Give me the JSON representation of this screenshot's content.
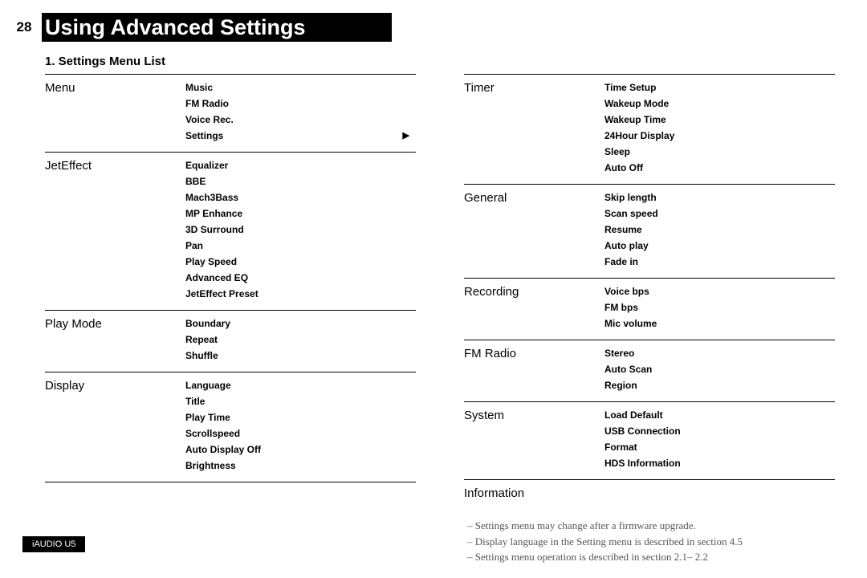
{
  "page_number": "28",
  "title": "Using Advanced Settings",
  "section_heading": "1. Settings Menu List",
  "left_column": [
    {
      "title": "Menu",
      "items": [
        "Music",
        "FM Radio",
        "Voice Rec.",
        "Settings"
      ],
      "arrow_on_last": true
    },
    {
      "title": "JetEffect",
      "items": [
        "Equalizer",
        "BBE",
        "Mach3Bass",
        "MP Enhance",
        "3D Surround",
        "Pan",
        "Play Speed",
        "Advanced EQ",
        "JetEffect Preset"
      ]
    },
    {
      "title": "Play Mode",
      "items": [
        "Boundary",
        "Repeat",
        "Shuffle"
      ]
    },
    {
      "title": "Display",
      "items": [
        "Language",
        "Title",
        "Play Time",
        "Scrollspeed",
        "Auto Display Off",
        "Brightness"
      ]
    }
  ],
  "right_column": [
    {
      "title": "Timer",
      "items": [
        "Time Setup",
        "Wakeup Mode",
        "Wakeup Time",
        "24Hour Display",
        "Sleep",
        "Auto Off"
      ]
    },
    {
      "title": "General",
      "items": [
        "Skip length",
        "Scan speed",
        "Resume",
        "Auto play",
        "Fade in"
      ]
    },
    {
      "title": "Recording",
      "items": [
        "Voice bps",
        "FM bps",
        "Mic volume"
      ]
    },
    {
      "title": "FM Radio",
      "items": [
        "Stereo",
        "Auto Scan",
        "Region"
      ]
    },
    {
      "title": "System",
      "items": [
        "Load Default",
        "USB Connection",
        "Format",
        "HDS Information"
      ]
    },
    {
      "title": "Information",
      "items": []
    }
  ],
  "footnotes": [
    "– Settings menu may change after a firmware upgrade.",
    "– Display language in the Setting menu is described in section 4.5",
    "– Settings menu operation is described in section 2.1– 2.2"
  ],
  "footer": "iAUDIO U5",
  "colors": {
    "background": "#ffffff",
    "header_bg": "#000000",
    "header_text": "#ffffff",
    "text": "#000000",
    "footnote_text": "#555555",
    "rule": "#000000"
  },
  "typography": {
    "title_size": 27,
    "page_num_size": 17,
    "section_size": 15,
    "group_title_size": 15,
    "item_size": 12,
    "footnote_size": 13,
    "footer_size": 11
  }
}
